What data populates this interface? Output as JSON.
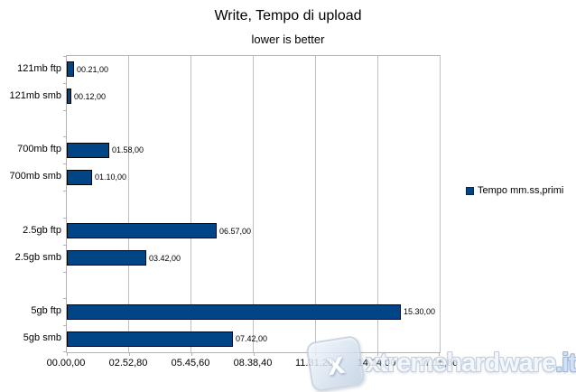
{
  "title": "Write, Tempo di upload",
  "subtitle": "lower is better",
  "legend": {
    "label": "Tempo mm.ss,primi"
  },
  "watermark": {
    "text": "xtremehardware",
    "tld": ".it",
    "logo_letter": "x"
  },
  "colors": {
    "bar": "#004586",
    "bar_border": "#000000",
    "grid": "#c0c0c0",
    "plot_border": "#b3b3b3",
    "legend_marker": "#004586"
  },
  "chart_data": {
    "type": "bar",
    "orientation": "horizontal",
    "title": "Write, Tempo di upload",
    "subtitle": "lower is better",
    "series_name": "Tempo mm.ss,primi",
    "categories": [
      "121mb ftp",
      "121mb smb",
      "700mb ftp",
      "700mb smb",
      "2.5gb ftp",
      "2.5gb smb",
      "5gb ftp",
      "5gb smb"
    ],
    "value_labels": [
      "00.21,00",
      "00.12,00",
      "01.58,00",
      "01.10,00",
      "06.57,00",
      "03.42,00",
      "15.30,00",
      "07.42,00"
    ],
    "values_seconds": [
      21,
      12,
      118,
      70,
      417,
      222,
      930,
      462
    ],
    "x_tick_labels": [
      "00.00,00",
      "02.52,80",
      "05.45,60",
      "08.38,40",
      "11.31,20",
      "14.24,00",
      "17.16,80"
    ],
    "x_tick_seconds": [
      0,
      172.8,
      345.6,
      518.4,
      691.2,
      864.0,
      1036.8
    ],
    "x_max_seconds": 1036.8,
    "xlabel": "",
    "ylabel": "",
    "grid": true,
    "legend_position": "right",
    "note": "categories grouped in pairs with one empty slot between groups"
  }
}
